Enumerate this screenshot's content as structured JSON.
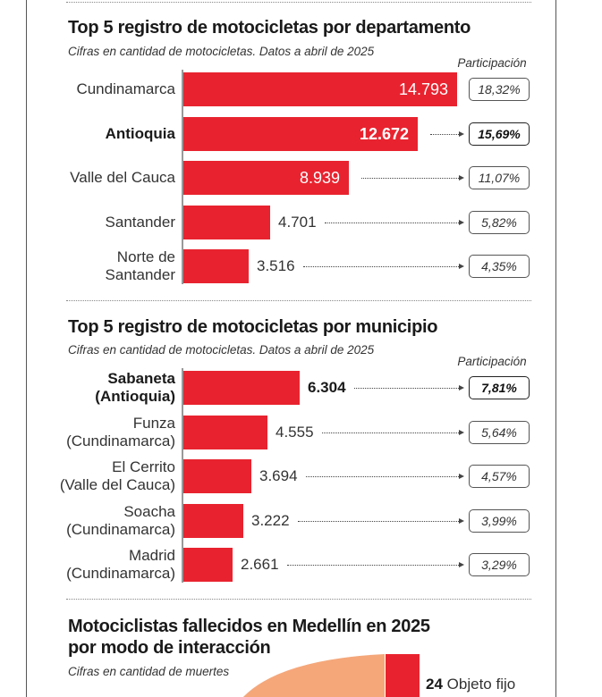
{
  "chart_data": [
    {
      "type": "bar",
      "title": "Top 5 registro de motocicletas por departamento",
      "subtitle": "Cifras en cantidad de motocicletas. Datos a abril de 2025",
      "participation_header": "Participación",
      "max_value": 14793,
      "rows": [
        {
          "label_lines": [
            "Cundinamarca"
          ],
          "value": 14793,
          "value_label": "14.793",
          "share": "18,32%",
          "bold": false
        },
        {
          "label_lines": [
            "Antioquia"
          ],
          "value": 12672,
          "value_label": "12.672",
          "share": "15,69%",
          "bold": true
        },
        {
          "label_lines": [
            "Valle del Cauca"
          ],
          "value": 8939,
          "value_label": "8.939",
          "share": "11,07%",
          "bold": false
        },
        {
          "label_lines": [
            "Santander"
          ],
          "value": 4701,
          "value_label": "4.701",
          "share": "5,82%",
          "bold": false
        },
        {
          "label_lines": [
            "Norte de",
            "Santander"
          ],
          "value": 3516,
          "value_label": "3.516",
          "share": "4,35%",
          "bold": false
        }
      ]
    },
    {
      "type": "bar",
      "title": "Top 5 registro de motocicletas por municipio",
      "subtitle": "Cifras en cantidad de motocicletas. Datos a abril de 2025",
      "participation_header": "Participación",
      "max_value": 14793,
      "rows": [
        {
          "label_lines": [
            "Sabaneta",
            "(Antioquia)"
          ],
          "value": 6304,
          "value_label": "6.304",
          "share": "7,81%",
          "bold": true
        },
        {
          "label_lines": [
            "Funza",
            "(Cundinamarca)"
          ],
          "value": 4555,
          "value_label": "4.555",
          "share": "5,64%",
          "bold": false
        },
        {
          "label_lines": [
            "El Cerrito",
            "(Valle del Cauca)"
          ],
          "value": 3694,
          "value_label": "3.694",
          "share": "4,57%",
          "bold": false
        },
        {
          "label_lines": [
            "Soacha",
            "(Cundinamarca)"
          ],
          "value": 3222,
          "value_label": "3.222",
          "share": "3,99%",
          "bold": false
        },
        {
          "label_lines": [
            "Madrid",
            "(Cundinamarca)"
          ],
          "value": 2661,
          "value_label": "2.661",
          "share": "3,29%",
          "bold": false
        }
      ]
    },
    {
      "type": "pie",
      "title_lines": [
        "Motociclistas fallecidos en Medellín en 2025",
        "por modo de interacción"
      ],
      "subtitle": "Cifras en cantidad de muertes",
      "slices": [
        {
          "label": "Objeto fijo",
          "value": 24,
          "value_label": "24",
          "color": "#e8232f"
        }
      ],
      "colors": {
        "slice_other": "#f5a77a"
      }
    }
  ],
  "colors": {
    "bar": "#e8232f",
    "text": "#333333"
  }
}
